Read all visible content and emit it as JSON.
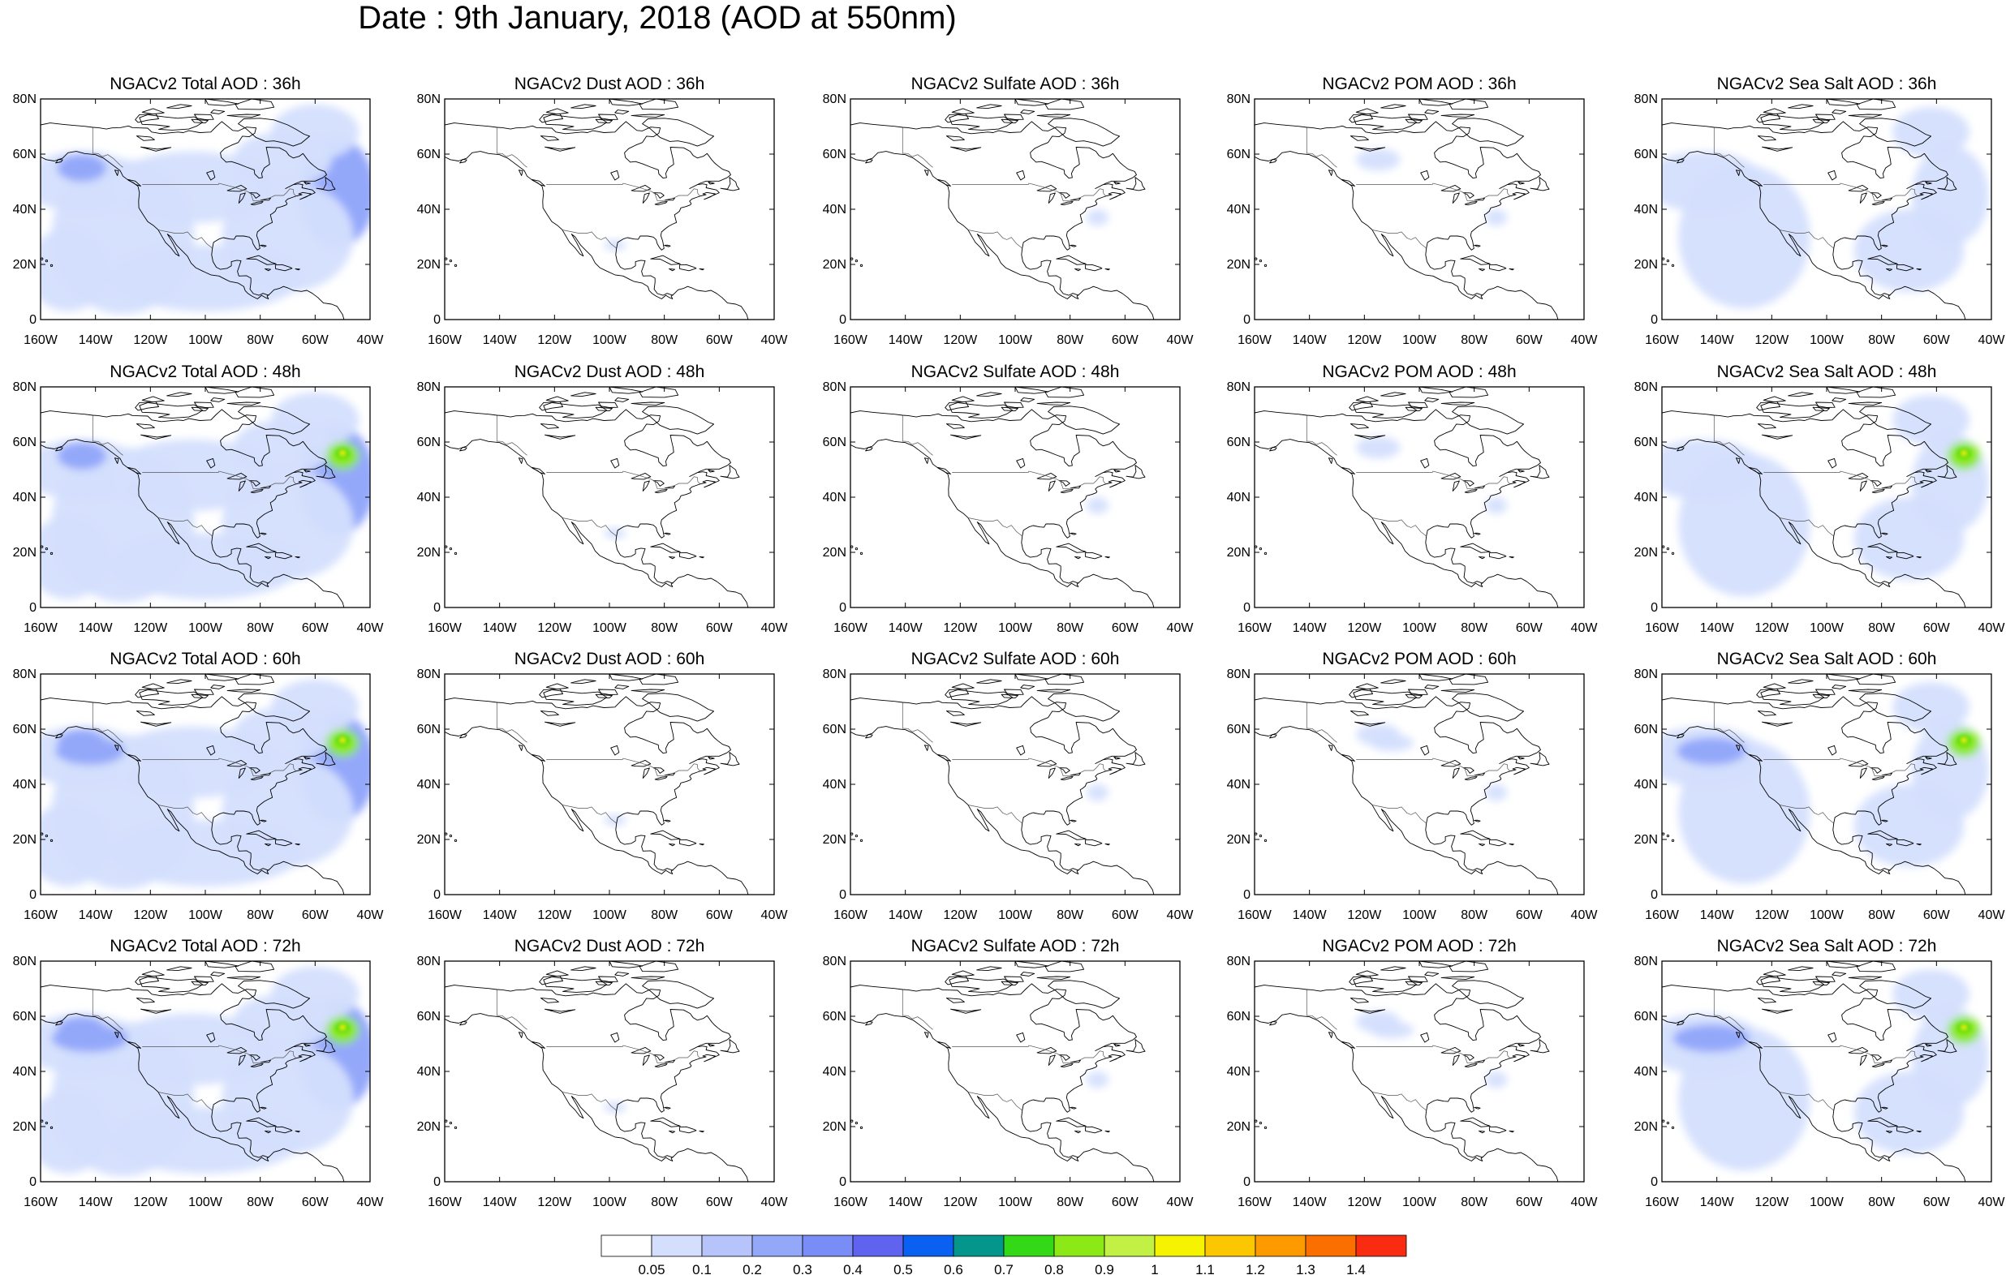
{
  "title": "Date : 9th January, 2018 (AOD at 550nm)",
  "lat_labels": [
    "80N",
    "60N",
    "40N",
    "20N",
    "0"
  ],
  "lon_labels": [
    "160W",
    "140W",
    "120W",
    "100W",
    "80W",
    "60W",
    "40W"
  ],
  "panels": [
    {
      "title": "NGACv2 Total AOD : 36h",
      "species": "total",
      "hour": 36
    },
    {
      "title": "NGACv2 Dust AOD : 36h",
      "species": "dust",
      "hour": 36
    },
    {
      "title": "NGACv2 Sulfate AOD : 36h",
      "species": "sulfate",
      "hour": 36
    },
    {
      "title": "NGACv2 POM AOD : 36h",
      "species": "pom",
      "hour": 36
    },
    {
      "title": "NGACv2 Sea Salt AOD : 36h",
      "species": "seasalt",
      "hour": 36
    },
    {
      "title": "NGACv2 Total AOD : 48h",
      "species": "total",
      "hour": 48
    },
    {
      "title": "NGACv2 Dust AOD : 48h",
      "species": "dust",
      "hour": 48
    },
    {
      "title": "NGACv2 Sulfate AOD : 48h",
      "species": "sulfate",
      "hour": 48
    },
    {
      "title": "NGACv2 POM AOD : 48h",
      "species": "pom",
      "hour": 48
    },
    {
      "title": "NGACv2 Sea Salt AOD : 48h",
      "species": "seasalt",
      "hour": 48
    },
    {
      "title": "NGACv2 Total AOD : 60h",
      "species": "total",
      "hour": 60
    },
    {
      "title": "NGACv2 Dust AOD : 60h",
      "species": "dust",
      "hour": 60
    },
    {
      "title": "NGACv2 Sulfate AOD : 60h",
      "species": "sulfate",
      "hour": 60
    },
    {
      "title": "NGACv2 POM AOD : 60h",
      "species": "pom",
      "hour": 60
    },
    {
      "title": "NGACv2 Sea Salt AOD : 60h",
      "species": "seasalt",
      "hour": 60
    },
    {
      "title": "NGACv2 Total AOD : 72h",
      "species": "total",
      "hour": 72
    },
    {
      "title": "NGACv2 Dust AOD : 72h",
      "species": "dust",
      "hour": 72
    },
    {
      "title": "NGACv2 Sulfate AOD : 72h",
      "species": "sulfate",
      "hour": 72
    },
    {
      "title": "NGACv2 POM AOD : 72h",
      "species": "pom",
      "hour": 72
    },
    {
      "title": "NGACv2 Sea Salt  AOD : 72h",
      "species": "seasalt",
      "hour": 72
    }
  ],
  "colorbar": {
    "colors": [
      "#ffffff",
      "#d4dffd",
      "#b6c4fb",
      "#94a8fa",
      "#7a8cf6",
      "#5f63ee",
      "#0a60f0",
      "#04968c",
      "#33d916",
      "#8ce817",
      "#c2f045",
      "#f5f300",
      "#fcc700",
      "#fc9a00",
      "#fb6e00",
      "#f92b10"
    ],
    "labels": [
      "0.05",
      "0.1",
      "0.2",
      "0.3",
      "0.4",
      "0.5",
      "0.6",
      "0.7",
      "0.8",
      "0.9",
      "1",
      "1.1",
      "1.2",
      "1.3",
      "1.4"
    ]
  }
}
